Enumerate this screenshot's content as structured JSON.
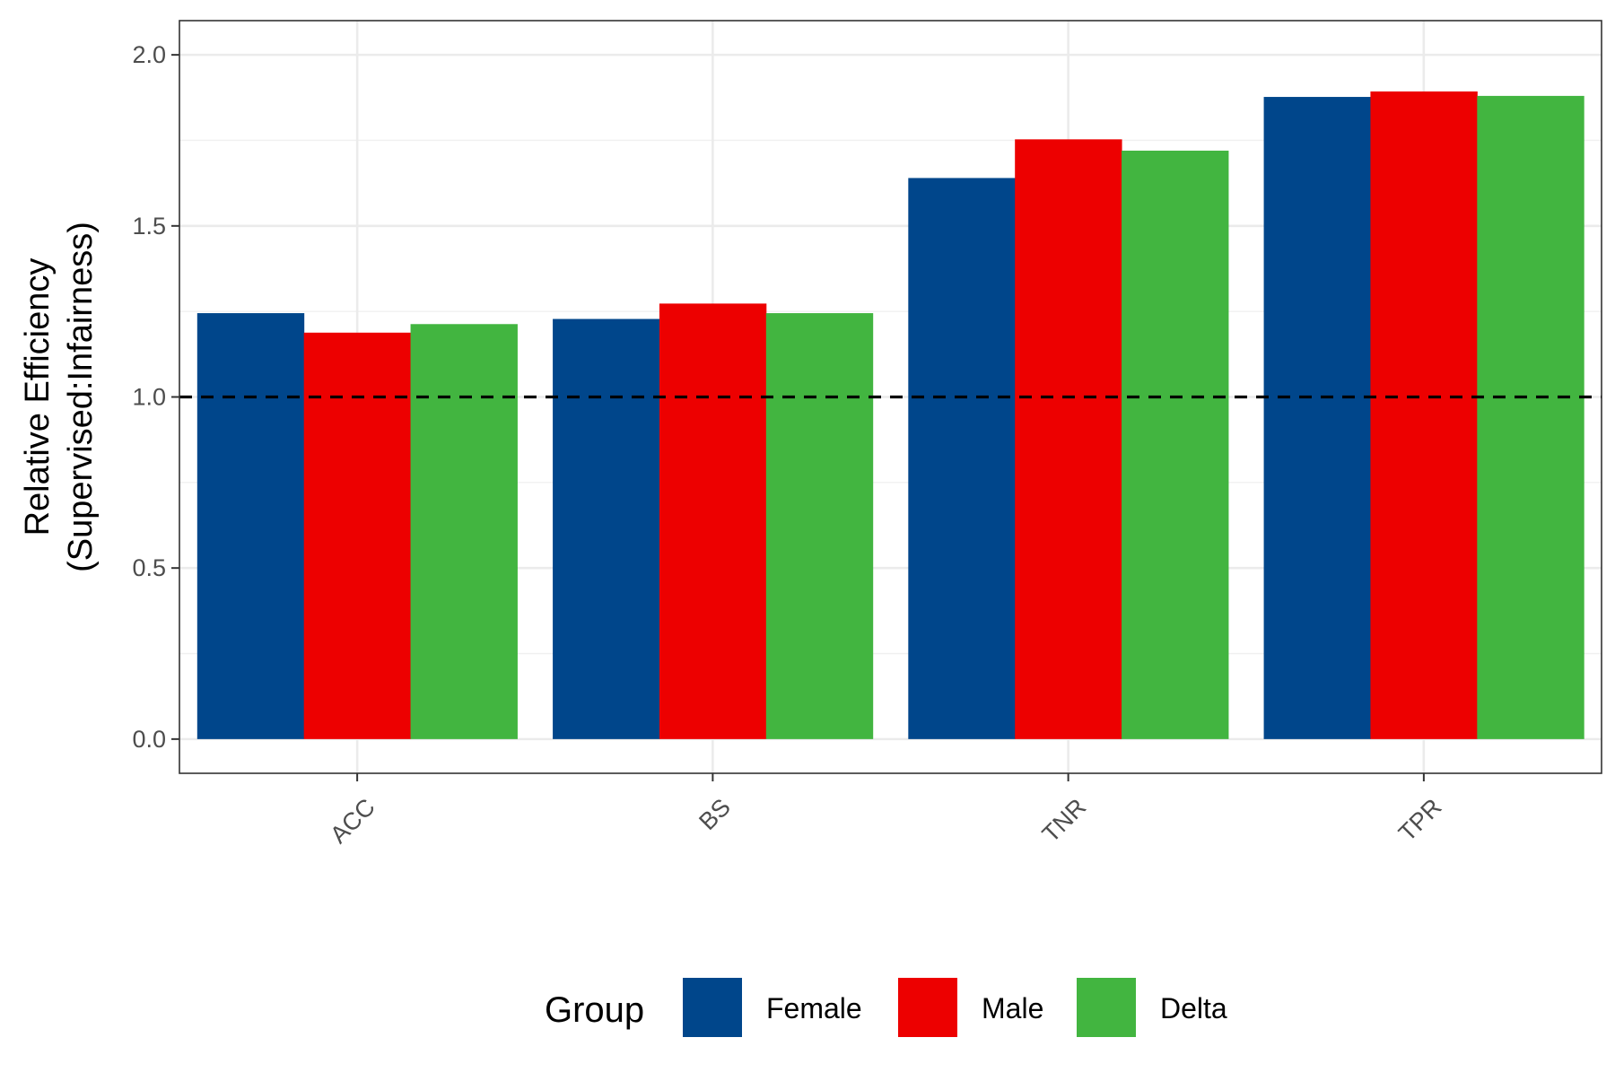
{
  "chart_data": {
    "type": "bar",
    "title": "",
    "xlabel": "",
    "ylabel": "Relative Efficiency",
    "ylabel_line2": "(Supervised:Infairness)",
    "categories": [
      "ACC",
      "BS",
      "TNR",
      "TPR"
    ],
    "series": [
      {
        "name": "Female",
        "color": "#00468B",
        "values": [
          1.245,
          1.228,
          1.64,
          1.877
        ]
      },
      {
        "name": "Male",
        "color": "#ED0000",
        "values": [
          1.188,
          1.273,
          1.753,
          1.893
        ]
      },
      {
        "name": "Delta",
        "color": "#42B540",
        "values": [
          1.213,
          1.245,
          1.72,
          1.88
        ]
      }
    ],
    "ylim": [
      -0.1,
      2.1
    ],
    "yticks": [
      0.0,
      0.5,
      1.0,
      1.5,
      2.0
    ],
    "ytick_labels": [
      "0.0",
      "0.5",
      "1.0",
      "1.5",
      "2.0"
    ],
    "reference_line": {
      "y": 1.0,
      "style": "dashed",
      "color": "#000000"
    },
    "grid": true,
    "legend": {
      "title": "Group",
      "position": "bottom"
    }
  }
}
